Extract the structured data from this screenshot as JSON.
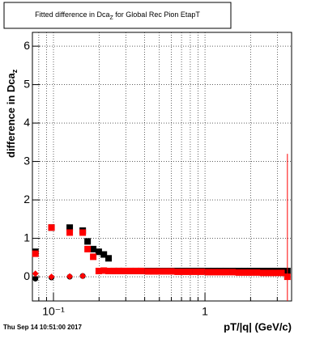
{
  "chart_data": {
    "type": "scatter",
    "title": [
      "Fitted difference in Dca",
      "Z",
      " for Global Rec Pion EtapT"
    ],
    "y_label": [
      "difference in Dca",
      "z"
    ],
    "x_label": "pT/|q| (GeV/c)",
    "footer": "Thu Sep 14 10:51:00 2017",
    "x": [
      0.076,
      0.097,
      0.128,
      0.156,
      0.168,
      0.183,
      0.199,
      0.215,
      0.231,
      0.25,
      0.27,
      0.29,
      0.32,
      0.35,
      0.38,
      0.42,
      0.46,
      0.5,
      0.55,
      0.6,
      0.66,
      0.72,
      0.79,
      0.87,
      0.95,
      1.05,
      1.15,
      1.26,
      1.38,
      1.52,
      1.67,
      1.83,
      2.0,
      2.2,
      2.42,
      2.66,
      2.92,
      3.2,
      3.5
    ],
    "series": [
      {
        "color": "#000000",
        "marker": "square",
        "values": [
          0.65,
          1.28,
          1.28,
          1.2,
          0.92,
          0.72,
          0.65,
          0.58,
          0.48,
          0.15,
          0.15,
          0.15,
          0.15,
          0.15,
          0.15,
          0.15,
          0.15,
          0.15,
          0.15,
          0.15,
          0.15,
          0.15,
          0.15,
          0.15,
          0.15,
          0.15,
          0.15,
          0.15,
          0.15,
          0.15,
          0.15,
          0.15,
          0.15,
          0.15,
          0.15,
          0.15,
          0.15,
          0.15,
          0.15
        ]
      },
      {
        "color": "#ff0000",
        "marker": "square",
        "values": [
          0.6,
          1.28,
          1.15,
          1.15,
          0.72,
          0.52,
          0.15,
          0.16,
          0.15,
          0.15,
          0.15,
          0.15,
          0.15,
          0.15,
          0.15,
          0.14,
          0.14,
          0.14,
          0.14,
          0.14,
          0.13,
          0.13,
          0.13,
          0.13,
          0.13,
          0.12,
          0.12,
          0.12,
          0.12,
          0.12,
          0.11,
          0.11,
          0.11,
          0.11,
          0.1,
          0.1,
          0.1,
          0.1,
          0.0
        ],
        "errors": [
          0.05,
          0.03,
          0.03,
          0.03,
          0.03,
          0.03,
          0.03,
          0.03,
          0.03,
          0.03,
          0.03,
          0.03,
          0.03,
          0.03,
          0.03,
          0.03,
          0.03,
          0.03,
          0.03,
          0.03,
          0.03,
          0.03,
          0.03,
          0.03,
          0.03,
          0.03,
          0.03,
          0.03,
          0.03,
          0.03,
          0.03,
          0.03,
          0.03,
          0.03,
          0.03,
          0.03,
          0.03,
          0.03,
          3.2
        ]
      },
      {
        "color": "#000000",
        "marker": "circle",
        "values": [
          -0.05,
          -0.02,
          0.0,
          0.02,
          null,
          null,
          null,
          null,
          null,
          null,
          null,
          null,
          null,
          null,
          null,
          null,
          null,
          null,
          null,
          null,
          null,
          null,
          null,
          null,
          null,
          null,
          null,
          null,
          null,
          null,
          null,
          null,
          null,
          null,
          null,
          null,
          null,
          null,
          null
        ]
      },
      {
        "color": "#ff0000",
        "marker": "diamond",
        "values": [
          0.08,
          0.0,
          0.01,
          0.02,
          null,
          null,
          null,
          null,
          null,
          null,
          null,
          null,
          null,
          null,
          null,
          null,
          null,
          null,
          null,
          null,
          null,
          null,
          null,
          null,
          null,
          null,
          null,
          null,
          null,
          null,
          null,
          null,
          null,
          null,
          null,
          null,
          null,
          null,
          null
        ]
      }
    ],
    "xlim": [
      0.0726,
      3.73
    ],
    "x_log": true,
    "xticks": [
      {
        "value": 0.1,
        "label": "10⁻¹"
      },
      1
    ],
    "xminorticks": [
      0.08,
      0.09,
      0.2,
      0.3,
      0.4,
      0.5,
      0.6,
      0.7,
      0.8,
      0.9,
      2,
      3
    ],
    "ylim": [
      -0.63,
      6.36
    ],
    "yticks": [
      0,
      1,
      2,
      3,
      4,
      5,
      6
    ],
    "grid": true
  }
}
